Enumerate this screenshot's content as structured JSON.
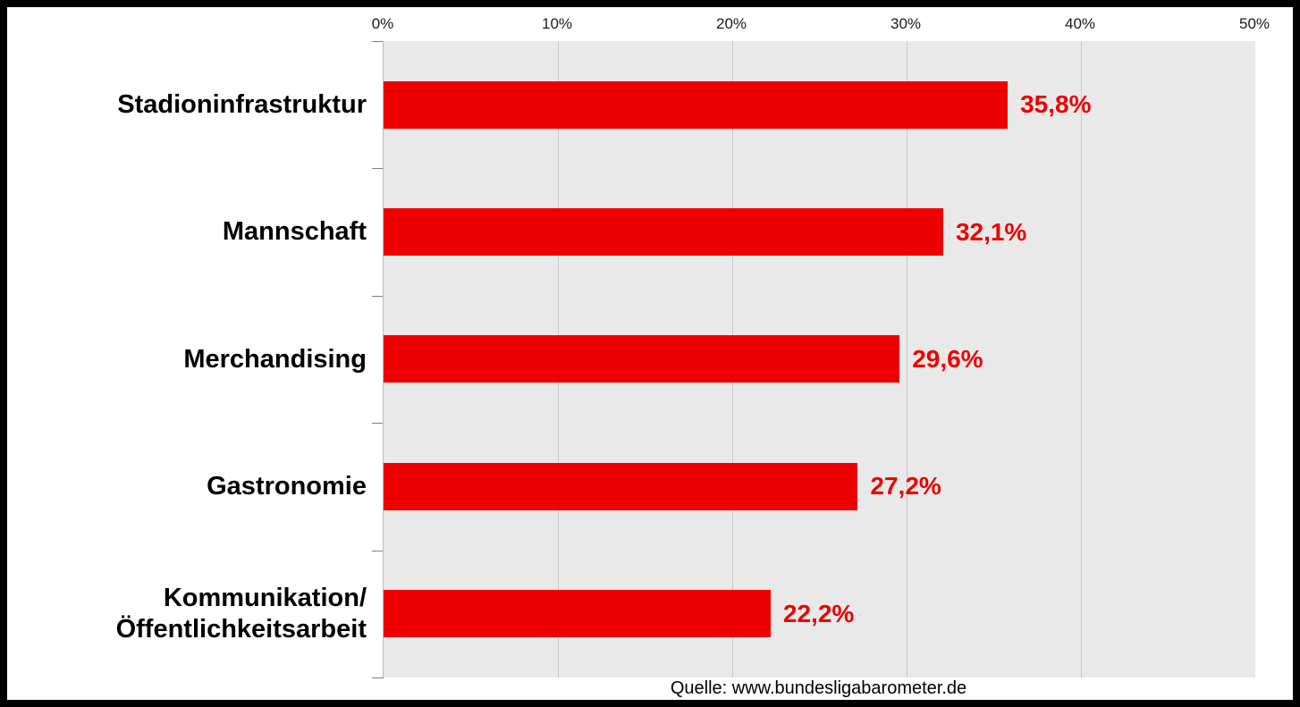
{
  "chart_data": {
    "type": "bar",
    "orientation": "horizontal",
    "categories": [
      "Stadioninfrastruktur",
      "Mannschaft",
      "Merchandising",
      "Gastronomie",
      "Kommunikation/\nÖffentlichkeitsarbeit"
    ],
    "values": [
      35.8,
      32.1,
      29.6,
      27.2,
      22.2
    ],
    "value_labels": [
      "35,8%",
      "32,1%",
      "29,6%",
      "27,2%",
      "22,2%"
    ],
    "x_ticks": [
      "0%",
      "10%",
      "20%",
      "30%",
      "40%",
      "50%"
    ],
    "xlim": [
      0,
      50
    ],
    "grid": true,
    "legend": false,
    "colors": {
      "bar": "#ee0000",
      "value_label": "#ee0000",
      "plot_background": "#e9e9e9",
      "grid_line": "#c8c8c8",
      "category_label": "#000000",
      "border": "#000000"
    },
    "source": "Quelle: www.bundesligabarometer.de"
  }
}
